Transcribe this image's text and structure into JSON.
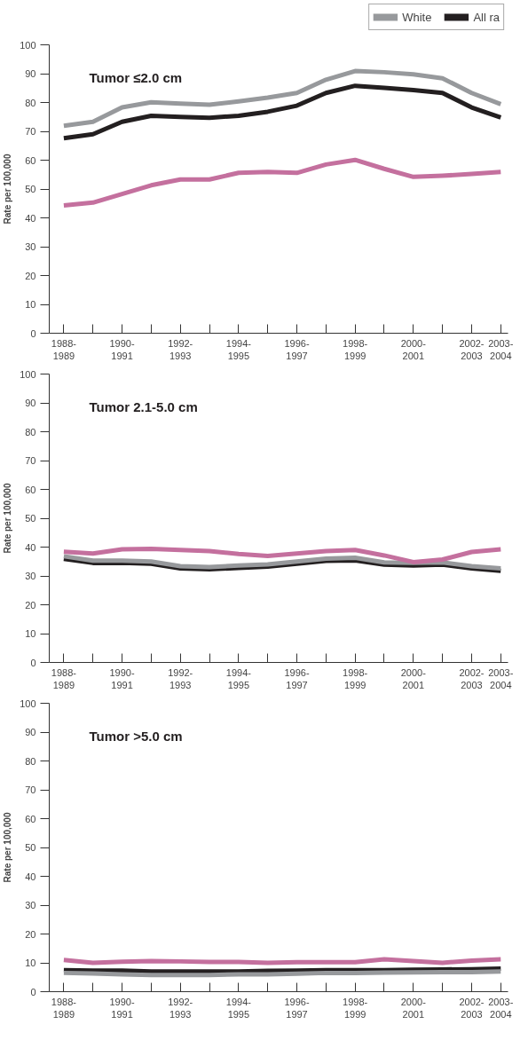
{
  "chart_data": [
    {
      "type": "line",
      "title": "Tumor ≤2.0 cm",
      "ylabel": "Rate per 100,000",
      "categories": [
        "1988-1989",
        null,
        "1990-1991",
        null,
        "1992-1993",
        null,
        "1994-1995",
        null,
        "1996-1997",
        null,
        "1998-1999",
        null,
        "2000-2001",
        null,
        "2002-2003",
        "2003-2004"
      ],
      "ylim": [
        0,
        100
      ],
      "yticks": [
        0,
        10,
        20,
        30,
        40,
        50,
        60,
        70,
        80,
        90,
        100
      ],
      "grid": false,
      "legend": "top right",
      "marker": "none",
      "line_style": "solid",
      "series": [
        {
          "name": "White",
          "color": "#97999c",
          "values": [
            71.9,
            73.3,
            78.3,
            80.1,
            79.6,
            79.2,
            80.4,
            81.7,
            83.3,
            87.9,
            90.9,
            90.5,
            89.8,
            88.4,
            83.3,
            79.4
          ]
        },
        {
          "name": "All ra",
          "color": "#231f20",
          "values": [
            67.6,
            69.0,
            73.3,
            75.4,
            75.0,
            74.7,
            75.4,
            76.8,
            78.9,
            83.3,
            85.8,
            85.1,
            84.3,
            83.3,
            78.3,
            74.8
          ]
        },
        {
          "color": "#c4709e",
          "values": [
            44.3,
            45.3,
            48.3,
            51.3,
            53.3,
            53.3,
            55.6,
            55.9,
            55.6,
            58.5,
            60.1,
            57.0,
            54.2,
            54.6,
            55.2,
            55.9
          ]
        }
      ]
    },
    {
      "type": "line",
      "title": "Tumor 2.1-5.0 cm",
      "ylabel": "Rate per 100,000",
      "categories": [
        "1988-1989",
        null,
        "1990-1991",
        null,
        "1992-1993",
        null,
        "1994-1995",
        null,
        "1996-1997",
        null,
        "1998-1999",
        null,
        "2000-2001",
        null,
        "2002-2003",
        "2003-2004"
      ],
      "ylim": [
        0,
        100
      ],
      "yticks": [
        0,
        10,
        20,
        30,
        40,
        50,
        60,
        70,
        80,
        90,
        100
      ],
      "grid": false,
      "marker": "none",
      "line_style": "solid",
      "series": [
        {
          "color": "#231f20",
          "values": [
            35.9,
            34.5,
            34.5,
            34.2,
            32.6,
            32.3,
            32.8,
            33.2,
            34.2,
            35.2,
            35.4,
            33.9,
            33.6,
            33.9,
            32.6,
            31.8
          ]
        },
        {
          "color": "#97999c",
          "values": [
            36.8,
            35.3,
            35.3,
            35.0,
            33.4,
            33.1,
            33.6,
            34.0,
            35.0,
            36.0,
            36.3,
            34.7,
            34.5,
            34.7,
            33.4,
            32.6
          ]
        },
        {
          "color": "#c4709e",
          "values": [
            38.4,
            37.8,
            39.2,
            39.4,
            39.0,
            38.6,
            37.6,
            36.9,
            37.8,
            38.6,
            39.0,
            37.1,
            34.8,
            35.7,
            38.3,
            39.2
          ]
        }
      ]
    },
    {
      "type": "line",
      "title": "Tumor >5.0 cm",
      "ylabel": "Rate per 100,000",
      "categories": [
        "1988-1989",
        null,
        "1990-1991",
        null,
        "1992-1993",
        null,
        "1994-1995",
        null,
        "1996-1997",
        null,
        "1998-1999",
        null,
        "2000-2001",
        null,
        "2002-2003",
        "2003-2004"
      ],
      "ylim": [
        0,
        100
      ],
      "yticks": [
        0,
        10,
        20,
        30,
        40,
        50,
        60,
        70,
        80,
        90,
        100
      ],
      "grid": false,
      "marker": "none",
      "line_style": "solid",
      "series": [
        {
          "color": "#231f20",
          "values": [
            7.5,
            7.3,
            7.3,
            7.0,
            7.0,
            7.0,
            7.0,
            7.2,
            7.3,
            7.5,
            7.5,
            7.5,
            7.6,
            7.7,
            7.8,
            8.0
          ]
        },
        {
          "color": "#97999c",
          "values": [
            6.5,
            6.3,
            6.0,
            5.8,
            5.8,
            5.8,
            6.0,
            6.0,
            6.2,
            6.5,
            6.5,
            6.6,
            6.7,
            6.8,
            6.8,
            7.0
          ]
        },
        {
          "color": "#c4709e",
          "values": [
            11.0,
            10.0,
            10.4,
            10.6,
            10.5,
            10.3,
            10.3,
            10.0,
            10.2,
            10.2,
            10.2,
            11.2,
            10.6,
            10.0,
            10.8,
            11.2
          ]
        }
      ]
    }
  ]
}
